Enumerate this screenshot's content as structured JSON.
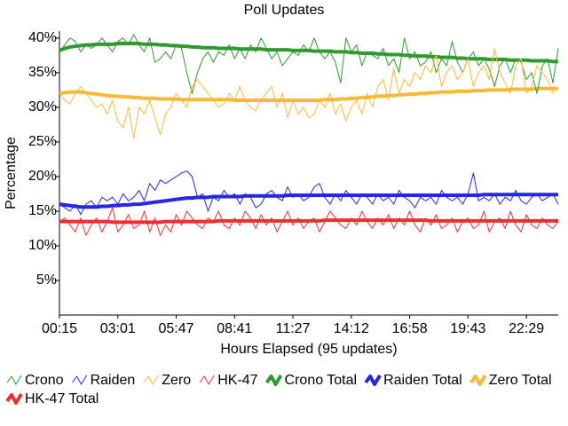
{
  "chart_data": {
    "type": "line",
    "title": "Poll Updates",
    "x_label": "Hours Elapsed (95 updates)",
    "y_label": "Percentage",
    "categories": [
      "00:15",
      null,
      null,
      null,
      null,
      null,
      null,
      null,
      null,
      null,
      null,
      "03:01",
      null,
      null,
      null,
      null,
      null,
      null,
      null,
      null,
      null,
      null,
      "05:47",
      null,
      null,
      null,
      null,
      null,
      null,
      null,
      null,
      null,
      null,
      "08:41",
      null,
      null,
      null,
      null,
      null,
      null,
      null,
      null,
      null,
      null,
      "11:27",
      null,
      null,
      null,
      null,
      null,
      null,
      null,
      null,
      null,
      null,
      "14:12",
      null,
      null,
      null,
      null,
      null,
      null,
      null,
      null,
      null,
      null,
      "16:58",
      null,
      null,
      null,
      null,
      null,
      null,
      null,
      null,
      null,
      null,
      "19:43",
      null,
      null,
      null,
      null,
      null,
      null,
      null,
      null,
      null,
      null,
      "22:29",
      null,
      null,
      null,
      null,
      null,
      null
    ],
    "ylim": [
      0,
      41
    ],
    "yticks": [
      {
        "value": 5,
        "label": "5%"
      },
      {
        "value": 10,
        "label": "10%"
      },
      {
        "value": 15,
        "label": "15%"
      },
      {
        "value": 20,
        "label": "20%"
      },
      {
        "value": 25,
        "label": "25%"
      },
      {
        "value": 30,
        "label": "30%"
      },
      {
        "value": 35,
        "label": "35%"
      },
      {
        "value": 40,
        "label": "40%"
      }
    ],
    "grid": false,
    "legend": "bottom",
    "series": [
      {
        "name": "Crono",
        "color": "#2f9a2f",
        "line_width": 1,
        "values": [
          38,
          39,
          40,
          39.5,
          38,
          39,
          38.5,
          39,
          40,
          39,
          38,
          39.5,
          40,
          39,
          40.5,
          39,
          38,
          40,
          36.5,
          37,
          38,
          37,
          39,
          38.5,
          35,
          32,
          35,
          37,
          38,
          36.5,
          38,
          37.5,
          39,
          37,
          38.5,
          37,
          39,
          38,
          40,
          38.5,
          37,
          38,
          36,
          37,
          38,
          37.5,
          39,
          38,
          40,
          38,
          37,
          38,
          36.5,
          33.5,
          40,
          38,
          39,
          36,
          38,
          37.5,
          37,
          38.5,
          36,
          37,
          35,
          40,
          37,
          38,
          36,
          36.5,
          38,
          35,
          37,
          36,
          39.5,
          36.5,
          35,
          37,
          38,
          36,
          37,
          35.5,
          33,
          36,
          37,
          35,
          37,
          36.5,
          34,
          35,
          32,
          36,
          37,
          33.5,
          38.5
        ]
      },
      {
        "name": "Raiden",
        "color": "#2626e6",
        "line_width": 1,
        "values": [
          16,
          15.5,
          15,
          16,
          14.5,
          16,
          16.5,
          15.5,
          17,
          16.5,
          17,
          16,
          17.5,
          16.5,
          17,
          18,
          16.5,
          19,
          18,
          19.5,
          19,
          19.5,
          20,
          20.5,
          20.8,
          20,
          17,
          17.5,
          15,
          17,
          16.5,
          18,
          17,
          17.5,
          16,
          17.5,
          17,
          15.5,
          16,
          17.5,
          18,
          17,
          16.5,
          18.5,
          17,
          17.5,
          16.5,
          17,
          18.5,
          19,
          17,
          16,
          17.5,
          16.5,
          18,
          17,
          16,
          17.5,
          17,
          16,
          17.5,
          16.5,
          17,
          16,
          18,
          17,
          16.5,
          15.5,
          17,
          16.5,
          17,
          16,
          18,
          17,
          16.5,
          17,
          16,
          17.5,
          20.5,
          16.5,
          17,
          16.5,
          17.5,
          16,
          17,
          16.5,
          18,
          16.5,
          16,
          17,
          17.5,
          16.5,
          17,
          17.5,
          16
        ]
      },
      {
        "name": "Zero",
        "color": "#f7ba38",
        "line_width": 1,
        "values": [
          32,
          31,
          30.5,
          32,
          33,
          32,
          31,
          30,
          30.5,
          29,
          31,
          28,
          27,
          30,
          25.5,
          30,
          29,
          31,
          28.5,
          26,
          29,
          30,
          32,
          31,
          30,
          33,
          34,
          33,
          32,
          31,
          30,
          30.5,
          32,
          31,
          33,
          31,
          30,
          29.5,
          31,
          32,
          33,
          30,
          32,
          28.5,
          31,
          29,
          30,
          28.5,
          29,
          31,
          30,
          32,
          29,
          30.5,
          28,
          30,
          31,
          29,
          32,
          30,
          33,
          34,
          31,
          35.5,
          32,
          34,
          33,
          35,
          34,
          36,
          35,
          37.5,
          33,
          35,
          36,
          34,
          35,
          37,
          33,
          35,
          36,
          34,
          38.5,
          35,
          33.5,
          32,
          36,
          37,
          32,
          33,
          36,
          35,
          34,
          32,
          33
        ]
      },
      {
        "name": "HK-47",
        "color": "#ea3030",
        "line_width": 1,
        "values": [
          13.5,
          14,
          13,
          12,
          14,
          11.5,
          13,
          14,
          12,
          13.5,
          15.5,
          12,
          13,
          14.5,
          12.5,
          13,
          15,
          12,
          14,
          11.5,
          13,
          12,
          14.5,
          13,
          15,
          14,
          13,
          12.5,
          14,
          13.5,
          15,
          13,
          12.5,
          14,
          13,
          15,
          14,
          12.5,
          14.5,
          13,
          14,
          12,
          13.5,
          15,
          13,
          14,
          12.5,
          13.5,
          14,
          12,
          13.5,
          15,
          14,
          13,
          12.5,
          14,
          13,
          15,
          13.5,
          12.5,
          14,
          13,
          14.5,
          12.5,
          14,
          13,
          15,
          13,
          12,
          14,
          13,
          14.5,
          12.5,
          13,
          14,
          12,
          13.5,
          14,
          12.5,
          13,
          15,
          12,
          13.5,
          14,
          12.5,
          15,
          13,
          12,
          14.5,
          13,
          12.5,
          14,
          13,
          12.5,
          13.5
        ]
      },
      {
        "name": "Crono Total",
        "color": "#2f9a2f",
        "line_width": 4,
        "values": [
          38.2,
          38.5,
          38.7,
          38.8,
          38.9,
          39.0,
          39.0,
          39.1,
          39.1,
          39.1,
          39.1,
          39.2,
          39.2,
          39.2,
          39.2,
          39.2,
          39.1,
          39.1,
          39.1,
          39.0,
          39.0,
          38.9,
          38.9,
          38.8,
          38.8,
          38.7,
          38.7,
          38.6,
          38.6,
          38.6,
          38.5,
          38.5,
          38.5,
          38.5,
          38.4,
          38.4,
          38.4,
          38.4,
          38.4,
          38.3,
          38.3,
          38.3,
          38.3,
          38.3,
          38.2,
          38.2,
          38.2,
          38.2,
          38.1,
          38.1,
          38.1,
          38.1,
          38.0,
          38.0,
          38.0,
          37.9,
          37.9,
          37.8,
          37.8,
          37.8,
          37.7,
          37.7,
          37.6,
          37.6,
          37.6,
          37.5,
          37.5,
          37.4,
          37.4,
          37.4,
          37.3,
          37.3,
          37.2,
          37.2,
          37.2,
          37.1,
          37.1,
          37.0,
          37.0,
          37.0,
          37.0,
          36.9,
          36.9,
          36.9,
          36.9,
          36.8,
          36.8,
          36.8,
          36.8,
          36.7,
          36.7,
          36.7,
          36.7,
          36.6,
          36.6
        ]
      },
      {
        "name": "Raiden Total",
        "color": "#2626e6",
        "line_width": 4,
        "values": [
          16.0,
          15.9,
          15.8,
          15.7,
          15.6,
          15.6,
          15.6,
          15.6,
          15.7,
          15.7,
          15.8,
          15.8,
          15.9,
          15.9,
          16.0,
          16.0,
          16.1,
          16.2,
          16.3,
          16.4,
          16.5,
          16.6,
          16.7,
          16.8,
          16.9,
          16.9,
          17.0,
          17.0,
          17.0,
          17.1,
          17.1,
          17.1,
          17.1,
          17.1,
          17.1,
          17.2,
          17.2,
          17.2,
          17.2,
          17.2,
          17.2,
          17.2,
          17.2,
          17.3,
          17.3,
          17.3,
          17.3,
          17.3,
          17.3,
          17.3,
          17.3,
          17.3,
          17.3,
          17.3,
          17.3,
          17.3,
          17.3,
          17.3,
          17.3,
          17.3,
          17.3,
          17.3,
          17.3,
          17.3,
          17.3,
          17.3,
          17.3,
          17.3,
          17.3,
          17.3,
          17.3,
          17.3,
          17.3,
          17.3,
          17.3,
          17.3,
          17.3,
          17.3,
          17.3,
          17.3,
          17.4,
          17.4,
          17.4,
          17.4,
          17.4,
          17.4,
          17.4,
          17.4,
          17.4,
          17.4,
          17.4,
          17.4,
          17.4,
          17.4,
          17.4
        ]
      },
      {
        "name": "Zero Total",
        "color": "#f7ba38",
        "line_width": 4,
        "values": [
          32.0,
          32.1,
          32.2,
          32.2,
          32.2,
          32.1,
          32.0,
          31.9,
          31.8,
          31.7,
          31.6,
          31.6,
          31.5,
          31.5,
          31.4,
          31.4,
          31.3,
          31.3,
          31.3,
          31.2,
          31.2,
          31.2,
          31.2,
          31.1,
          31.1,
          31.1,
          31.1,
          31.1,
          31.1,
          31.1,
          31.1,
          31.1,
          31.1,
          31.0,
          31.0,
          31.0,
          31.0,
          31.0,
          31.0,
          31.0,
          31.0,
          31.0,
          31.0,
          31.0,
          31.0,
          31.0,
          31.0,
          31.0,
          31.0,
          31.0,
          31.1,
          31.1,
          31.1,
          31.2,
          31.2,
          31.3,
          31.3,
          31.4,
          31.4,
          31.5,
          31.6,
          31.6,
          31.7,
          31.7,
          31.8,
          31.8,
          31.9,
          31.9,
          32.0,
          32.0,
          32.1,
          32.1,
          32.2,
          32.2,
          32.2,
          32.3,
          32.3,
          32.3,
          32.4,
          32.4,
          32.4,
          32.5,
          32.5,
          32.5,
          32.5,
          32.6,
          32.6,
          32.6,
          32.6,
          32.6,
          32.7,
          32.7,
          32.7,
          32.7,
          32.7
        ]
      },
      {
        "name": "HK-47 Total",
        "color": "#ea3030",
        "line_width": 4,
        "values": [
          13.5,
          13.5,
          13.5,
          13.5,
          13.5,
          13.5,
          13.5,
          13.5,
          13.5,
          13.5,
          13.4,
          13.4,
          13.4,
          13.4,
          13.4,
          13.4,
          13.4,
          13.4,
          13.4,
          13.4,
          13.5,
          13.5,
          13.5,
          13.5,
          13.5,
          13.5,
          13.5,
          13.5,
          13.5,
          13.5,
          13.6,
          13.6,
          13.6,
          13.6,
          13.6,
          13.6,
          13.6,
          13.6,
          13.6,
          13.6,
          13.6,
          13.6,
          13.6,
          13.6,
          13.6,
          13.6,
          13.6,
          13.6,
          13.6,
          13.6,
          13.7,
          13.7,
          13.7,
          13.7,
          13.7,
          13.7,
          13.7,
          13.7,
          13.7,
          13.7,
          13.7,
          13.7,
          13.7,
          13.7,
          13.7,
          13.7,
          13.7,
          13.7,
          13.7,
          13.7,
          13.6,
          13.6,
          13.6,
          13.6,
          13.6,
          13.6,
          13.6,
          13.6,
          13.6,
          13.6,
          13.6,
          13.6,
          13.6,
          13.6,
          13.6,
          13.6,
          13.6,
          13.6,
          13.6,
          13.6,
          13.6,
          13.6,
          13.6,
          13.6,
          13.6
        ]
      }
    ]
  }
}
